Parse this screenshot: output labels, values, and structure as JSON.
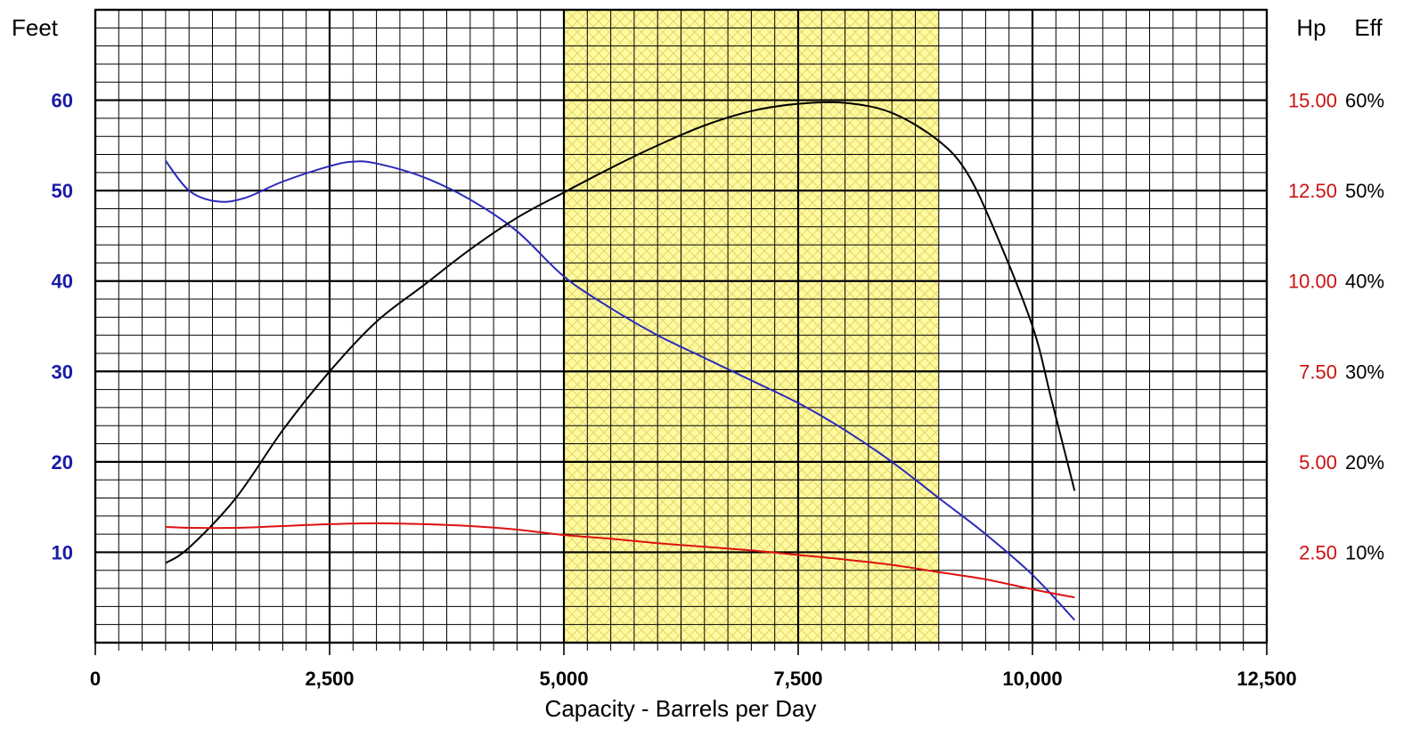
{
  "chart_data": {
    "type": "line",
    "xlabel": "Capacity - Barrels per Day",
    "xlim": [
      0,
      12500
    ],
    "x_ticks": [
      {
        "value": 0,
        "label": "0"
      },
      {
        "value": 2500,
        "label": "2,500"
      },
      {
        "value": 5000,
        "label": "5,000"
      },
      {
        "value": 7500,
        "label": "7,500"
      },
      {
        "value": 10000,
        "label": "10,000"
      },
      {
        "value": 12500,
        "label": "12,500"
      }
    ],
    "y_left": {
      "label": "Feet",
      "lim": [
        0,
        70
      ],
      "ticks": [
        {
          "value": 10,
          "label": "10"
        },
        {
          "value": 20,
          "label": "20"
        },
        {
          "value": 30,
          "label": "30"
        },
        {
          "value": 40,
          "label": "40"
        },
        {
          "value": 50,
          "label": "50"
        },
        {
          "value": 60,
          "label": "60"
        }
      ],
      "color": "#1a1aa6"
    },
    "y_right_hp": {
      "label": "Hp",
      "ticks": [
        {
          "value": 10,
          "label": "2.50"
        },
        {
          "value": 20,
          "label": "5.00"
        },
        {
          "value": 30,
          "label": "7.50"
        },
        {
          "value": 40,
          "label": "10.00"
        },
        {
          "value": 50,
          "label": "12.50"
        },
        {
          "value": 60,
          "label": "15.00"
        }
      ],
      "color": "#cc1111"
    },
    "y_right_eff": {
      "label": "Eff",
      "ticks": [
        {
          "value": 10,
          "label": "10%"
        },
        {
          "value": 20,
          "label": "20%"
        },
        {
          "value": 30,
          "label": "30%"
        },
        {
          "value": 40,
          "label": "40%"
        },
        {
          "value": 50,
          "label": "50%"
        },
        {
          "value": 60,
          "label": "60%"
        }
      ],
      "color": "#000000"
    },
    "recommended_range": {
      "x_start": 5000,
      "x_end": 9000,
      "color": "#fffaa0"
    },
    "grid": true,
    "series": [
      {
        "color": "#2a2ab8",
        "points": [
          [
            750,
            53.3
          ],
          [
            1000,
            50.0
          ],
          [
            1300,
            48.8
          ],
          [
            1600,
            49.2
          ],
          [
            2000,
            51.0
          ],
          [
            2500,
            52.7
          ],
          [
            2750,
            53.2
          ],
          [
            3000,
            53.0
          ],
          [
            3500,
            51.5
          ],
          [
            4000,
            49.0
          ],
          [
            4500,
            45.5
          ],
          [
            5000,
            40.5
          ],
          [
            5500,
            37.0
          ],
          [
            6000,
            34.0
          ],
          [
            6500,
            31.5
          ],
          [
            7000,
            29.0
          ],
          [
            7500,
            26.5
          ],
          [
            8000,
            23.5
          ],
          [
            8500,
            20.0
          ],
          [
            9000,
            16.0
          ],
          [
            9500,
            12.0
          ],
          [
            10000,
            7.5
          ],
          [
            10450,
            2.5
          ]
        ]
      },
      {
        "color": "#000000",
        "points": [
          [
            750,
            8.8
          ],
          [
            1000,
            10.5
          ],
          [
            1500,
            16.0
          ],
          [
            2000,
            23.5
          ],
          [
            2500,
            30.0
          ],
          [
            3000,
            35.5
          ],
          [
            3500,
            39.5
          ],
          [
            4000,
            43.5
          ],
          [
            4500,
            47.0
          ],
          [
            5000,
            49.8
          ],
          [
            5500,
            52.5
          ],
          [
            6000,
            55.0
          ],
          [
            6500,
            57.2
          ],
          [
            7000,
            58.8
          ],
          [
            7500,
            59.6
          ],
          [
            8000,
            59.7
          ],
          [
            8500,
            58.6
          ],
          [
            9000,
            55.5
          ],
          [
            9300,
            52.0
          ],
          [
            9600,
            45.5
          ],
          [
            10000,
            35.0
          ],
          [
            10200,
            27.0
          ],
          [
            10450,
            16.8
          ]
        ]
      },
      {
        "color": "#dd1111",
        "points": [
          [
            750,
            12.8
          ],
          [
            1000,
            12.7
          ],
          [
            1500,
            12.7
          ],
          [
            2000,
            12.9
          ],
          [
            2500,
            13.1
          ],
          [
            3000,
            13.2
          ],
          [
            3500,
            13.1
          ],
          [
            4000,
            12.9
          ],
          [
            4500,
            12.5
          ],
          [
            5000,
            11.9
          ],
          [
            5500,
            11.5
          ],
          [
            6000,
            11.0
          ],
          [
            6500,
            10.6
          ],
          [
            7000,
            10.2
          ],
          [
            7500,
            9.7
          ],
          [
            8000,
            9.2
          ],
          [
            8500,
            8.6
          ],
          [
            9000,
            7.8
          ],
          [
            9500,
            7.0
          ],
          [
            10000,
            5.9
          ],
          [
            10450,
            5.0
          ]
        ]
      }
    ]
  }
}
